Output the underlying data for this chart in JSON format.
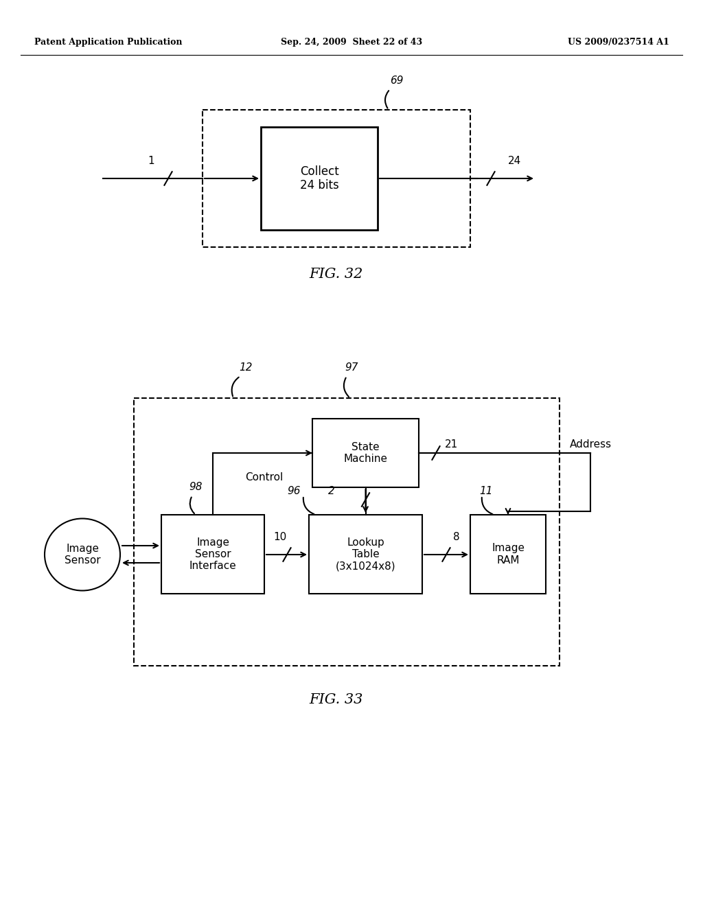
{
  "header_left": "Patent Application Publication",
  "header_center": "Sep. 24, 2009  Sheet 22 of 43",
  "header_right": "US 2009/0237514 A1",
  "fig32_label": "FIG. 32",
  "fig33_label": "FIG. 33",
  "bg_color": "#ffffff",
  "line_color": "#000000"
}
